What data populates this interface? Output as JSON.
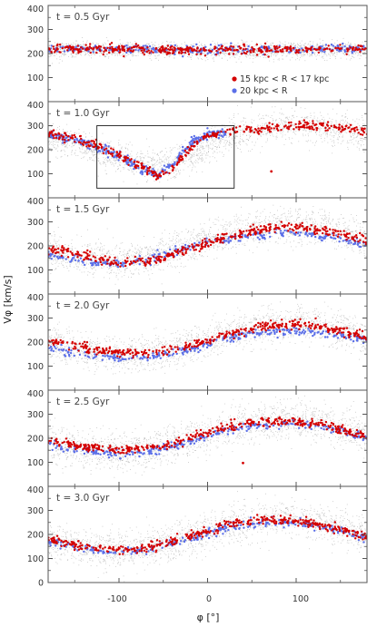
{
  "figure": {
    "ylabel": "Vφ [km/s]",
    "xlabel": "φ [°]",
    "x_tick_labels": [
      "-100",
      "0",
      "100"
    ],
    "legend": [
      {
        "label": "15 kpc < R < 17 kpc",
        "color": "#d40000"
      },
      {
        "label": "20 kpc < R",
        "color": "#5b6fe8"
      }
    ]
  },
  "colors": {
    "background_stars": "#9a9a9a",
    "series_inner": "#d40000",
    "series_outer": "#5b6fe8",
    "frame": "#555555"
  },
  "chart_data": [
    {
      "type": "scatter",
      "panel_label": "t = 0.5 Gyr",
      "xlim": [
        -180,
        180
      ],
      "ylim": [
        0,
        400
      ],
      "y_ticks": [
        100,
        200,
        300,
        400
      ],
      "x_ticks": [
        -100,
        0,
        100
      ],
      "series": [
        {
          "name": "15 kpc < R < 17 kpc",
          "x": [
            -180,
            -120,
            -60,
            0,
            60,
            120,
            180
          ],
          "y": [
            222,
            220,
            217,
            214,
            216,
            219,
            222
          ]
        },
        {
          "name": "20 kpc < R",
          "x": [
            -180,
            -120,
            -60,
            0,
            60,
            120,
            180
          ],
          "y": [
            220,
            218,
            216,
            214,
            215,
            217,
            220
          ]
        }
      ],
      "background_curve": {
        "x": [
          -180,
          -120,
          -60,
          0,
          60,
          120,
          180
        ],
        "y": [
          218,
          216,
          214,
          212,
          214,
          216,
          218
        ],
        "spread": 30
      }
    },
    {
      "type": "scatter",
      "panel_label": "t = 1.0 Gyr",
      "xlim": [
        -180,
        180
      ],
      "ylim": [
        0,
        400
      ],
      "y_ticks": [
        100,
        200,
        300,
        400
      ],
      "x_ticks": [
        -100,
        0,
        100
      ],
      "series": [
        {
          "name": "15 kpc < R < 17 kpc",
          "x": [
            -180,
            -150,
            -120,
            -90,
            -70,
            -55,
            -45,
            -30,
            -15,
            0,
            20,
            60,
            100,
            140,
            180
          ],
          "y": [
            265,
            245,
            210,
            160,
            120,
            90,
            110,
            160,
            220,
            260,
            275,
            285,
            300,
            300,
            275
          ]
        },
        {
          "name": "20 kpc < R",
          "x": [
            -180,
            -150,
            -120,
            -90,
            -70,
            -55,
            -45,
            -30,
            -15,
            0,
            20
          ],
          "y": [
            262,
            242,
            205,
            155,
            115,
            95,
            120,
            180,
            240,
            265,
            270
          ]
        }
      ],
      "background_curve": {
        "x": [
          -180,
          -150,
          -120,
          -90,
          -60,
          -30,
          0,
          30,
          60,
          90,
          120,
          150,
          180
        ],
        "y": [
          250,
          225,
          190,
          155,
          130,
          150,
          215,
          265,
          290,
          300,
          298,
          285,
          265
        ],
        "spread": 60
      },
      "annotation_box": {
        "x": [
          -125,
          30
        ],
        "y": [
          40,
          300
        ]
      },
      "outliers": [
        {
          "x": 72,
          "y": 110
        }
      ]
    },
    {
      "type": "scatter",
      "panel_label": "t = 1.5 Gyr",
      "xlim": [
        -180,
        180
      ],
      "ylim": [
        0,
        400
      ],
      "y_ticks": [
        100,
        200,
        300,
        400
      ],
      "x_ticks": [
        -100,
        0,
        100
      ],
      "series": [
        {
          "name": "15 kpc < R < 17 kpc",
          "x": [
            -180,
            -140,
            -100,
            -60,
            -20,
            20,
            60,
            100,
            140,
            180
          ],
          "y": [
            185,
            160,
            130,
            140,
            185,
            235,
            270,
            280,
            260,
            225
          ]
        },
        {
          "name": "20 kpc < R",
          "x": [
            -180,
            -140,
            -100,
            -60,
            -20,
            20,
            60,
            100,
            140,
            180
          ],
          "y": [
            160,
            135,
            125,
            150,
            195,
            225,
            250,
            255,
            240,
            205
          ]
        }
      ],
      "background_curve": {
        "x": [
          -180,
          -135,
          -90,
          -45,
          0,
          45,
          90,
          135,
          180
        ],
        "y": [
          180,
          150,
          140,
          170,
          225,
          270,
          290,
          275,
          220
        ],
        "spread": 65
      }
    },
    {
      "type": "scatter",
      "panel_label": "t = 2.0 Gyr",
      "xlim": [
        -180,
        180
      ],
      "ylim": [
        0,
        400
      ],
      "y_ticks": [
        100,
        200,
        300,
        400
      ],
      "x_ticks": [
        -100,
        0,
        100
      ],
      "series": [
        {
          "name": "15 kpc < R < 17 kpc",
          "x": [
            -180,
            -140,
            -100,
            -60,
            -20,
            20,
            60,
            100,
            140,
            180
          ],
          "y": [
            205,
            175,
            155,
            155,
            185,
            230,
            265,
            275,
            255,
            220
          ]
        },
        {
          "name": "20 kpc < R",
          "x": [
            -180,
            -140,
            -100,
            -60,
            -20,
            20,
            60,
            100,
            140,
            180
          ],
          "y": [
            175,
            150,
            135,
            140,
            170,
            210,
            240,
            245,
            235,
            205
          ]
        }
      ],
      "background_curve": {
        "x": [
          -180,
          -135,
          -90,
          -45,
          0,
          45,
          90,
          135,
          180
        ],
        "y": [
          195,
          160,
          145,
          165,
          215,
          260,
          280,
          265,
          220
        ],
        "spread": 65
      }
    },
    {
      "type": "scatter",
      "panel_label": "t = 2.5 Gyr",
      "xlim": [
        -180,
        180
      ],
      "ylim": [
        0,
        400
      ],
      "y_ticks": [
        100,
        200,
        300,
        400
      ],
      "x_ticks": [
        -100,
        0,
        100
      ],
      "series": [
        {
          "name": "15 kpc < R < 17 kpc",
          "x": [
            -180,
            -140,
            -100,
            -60,
            -20,
            20,
            60,
            100,
            140,
            180
          ],
          "y": [
            190,
            165,
            150,
            160,
            200,
            245,
            270,
            270,
            245,
            205
          ]
        },
        {
          "name": "20 kpc < R",
          "x": [
            -180,
            -140,
            -100,
            -60,
            -20,
            20,
            60,
            100,
            140,
            180
          ],
          "y": [
            175,
            150,
            135,
            145,
            185,
            230,
            255,
            260,
            240,
            200
          ]
        }
      ],
      "background_curve": {
        "x": [
          -180,
          -135,
          -90,
          -45,
          0,
          45,
          90,
          135,
          180
        ],
        "y": [
          185,
          155,
          145,
          170,
          220,
          262,
          278,
          260,
          210
        ],
        "spread": 70
      },
      "outliers": [
        {
          "x": 40,
          "y": 97
        }
      ]
    },
    {
      "type": "scatter",
      "panel_label": "t = 3.0 Gyr",
      "xlim": [
        -180,
        180
      ],
      "ylim": [
        0,
        400
      ],
      "y_ticks": [
        0,
        100,
        200,
        300,
        400
      ],
      "x_ticks": [
        -100,
        0,
        100
      ],
      "series": [
        {
          "name": "15 kpc < R < 17 kpc",
          "x": [
            -180,
            -140,
            -100,
            -60,
            -20,
            20,
            60,
            100,
            140,
            180
          ],
          "y": [
            180,
            150,
            135,
            150,
            195,
            240,
            260,
            255,
            230,
            190
          ]
        },
        {
          "name": "20 kpc < R",
          "x": [
            -180,
            -140,
            -100,
            -60,
            -20,
            20,
            60,
            100,
            140,
            180
          ],
          "y": [
            170,
            140,
            125,
            140,
            180,
            225,
            250,
            250,
            225,
            185
          ]
        }
      ],
      "background_curve": {
        "x": [
          -180,
          -135,
          -90,
          -45,
          0,
          45,
          90,
          135,
          180
        ],
        "y": [
          175,
          145,
          135,
          160,
          210,
          255,
          270,
          250,
          200
        ],
        "spread": 70
      }
    }
  ]
}
